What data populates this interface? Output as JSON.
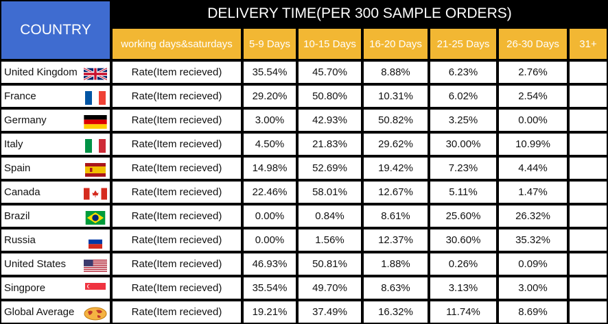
{
  "header": {
    "country_label": "COUNTRY",
    "title": "DELIVERY TIME(PER 300 SAMPLE ORDERS)",
    "columns": [
      "working days&saturdays",
      "5-9 Days",
      "10-15 Days",
      "16-20 Days",
      "21-25 Days",
      "26-30 Days",
      "31+"
    ]
  },
  "rows": [
    {
      "country": "United Kingdom",
      "flag": "uk-flag-icon",
      "rate_label": "Rate(Item recieved)",
      "values": [
        "35.54%",
        "45.70%",
        "8.88%",
        "6.23%",
        "2.76%",
        ""
      ]
    },
    {
      "country": "France",
      "flag": "france-flag-icon",
      "rate_label": "Rate(Item recieved)",
      "values": [
        "29.20%",
        "50.80%",
        "10.31%",
        "6.02%",
        "2.54%",
        ""
      ]
    },
    {
      "country": "Germany",
      "flag": "germany-flag-icon",
      "rate_label": "Rate(Item recieved)",
      "values": [
        "3.00%",
        "42.93%",
        "50.82%",
        "3.25%",
        "0.00%",
        ""
      ]
    },
    {
      "country": "Italy",
      "flag": "italy-flag-icon",
      "rate_label": "Rate(Item recieved)",
      "values": [
        "4.50%",
        "21.83%",
        "29.62%",
        "30.00%",
        "10.99%",
        ""
      ]
    },
    {
      "country": "Spain",
      "flag": "spain-flag-icon",
      "rate_label": "Rate(Item recieved)",
      "values": [
        "14.98%",
        "52.69%",
        "19.42%",
        "7.23%",
        "4.44%",
        ""
      ]
    },
    {
      "country": "Canada",
      "flag": "canada-flag-icon",
      "rate_label": "Rate(Item recieved)",
      "values": [
        "22.46%",
        "58.01%",
        "12.67%",
        "5.11%",
        "1.47%",
        ""
      ]
    },
    {
      "country": "Brazil",
      "flag": "brazil-flag-icon",
      "rate_label": "Rate(Item recieved)",
      "values": [
        "0.00%",
        "0.84%",
        "8.61%",
        "25.60%",
        "26.32%",
        ""
      ]
    },
    {
      "country": "Russia",
      "flag": "russia-flag-icon",
      "rate_label": "Rate(Item recieved)",
      "values": [
        "0.00%",
        "1.56%",
        "12.37%",
        "30.60%",
        "35.32%",
        ""
      ]
    },
    {
      "country": "United States",
      "flag": "usa-flag-icon",
      "rate_label": "Rate(Item recieved)",
      "values": [
        "46.93%",
        "50.81%",
        "1.88%",
        "0.26%",
        "0.09%",
        ""
      ]
    },
    {
      "country": "Singpore",
      "flag": "singapore-flag-icon",
      "rate_label": "Rate(Item recieved)",
      "values": [
        "35.54%",
        "49.70%",
        "8.63%",
        "3.13%",
        "3.00%",
        ""
      ]
    },
    {
      "country": "Global Average",
      "flag": "globe-icon",
      "rate_label": "Rate(Item recieved)",
      "values": [
        "19.21%",
        "37.49%",
        "16.32%",
        "11.74%",
        "8.69%",
        ""
      ]
    }
  ]
}
